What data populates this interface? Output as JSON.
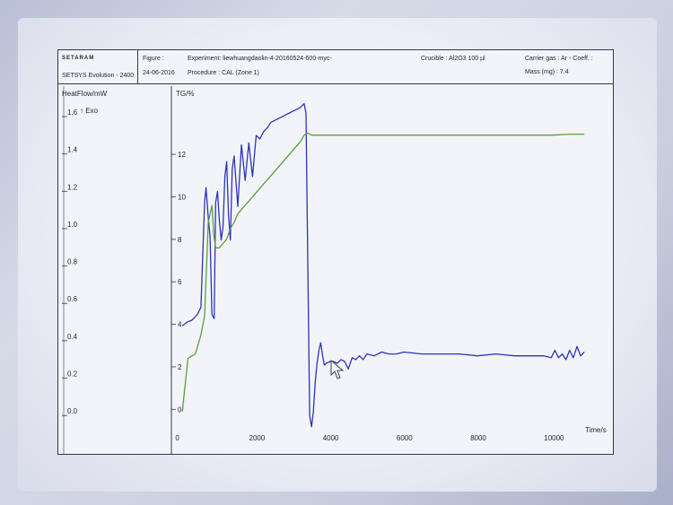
{
  "header": {
    "logo": "SETARAM",
    "app": "SETSYS Evolution - 2400",
    "figure_label": "Figure :",
    "experiment": "Experiment: liewhuangdaolin-4-20160524-600-myc-",
    "date": "24-06-2016",
    "procedure": "Procedure : CAL (Zone 1)",
    "crucible": "Crucible : Al2O3 100 µl",
    "carrier": "Carrier gas : Ar - Coeff. :",
    "mass": "Mass (mg) :  7.4"
  },
  "colors": {
    "heatflow": "#2a35b8",
    "tg": "#5a9e3a",
    "axis": "#33374a"
  },
  "chart_data": {
    "type": "line",
    "title": "",
    "xlabel": "Time/s",
    "xlim": [
      -300,
      11600
    ],
    "x_ticks": [
      "0",
      "2000",
      "4000",
      "6000",
      "8000",
      "10000"
    ],
    "y_left": {
      "label": "HeatFlow/mW",
      "exo_label": "↑ Exo",
      "ylim": [
        -0.1,
        1.72
      ],
      "ticks": [
        "1.6",
        "1.4",
        "1.2",
        "1.0",
        "0.8",
        "0.6",
        "0.4",
        "0.2",
        "0.0"
      ]
    },
    "y_right": {
      "label": "TG/%",
      "ylim": [
        -1,
        15
      ],
      "ticks": [
        "12",
        "10",
        "8",
        "6",
        "4",
        "2",
        "0"
      ]
    },
    "series": [
      {
        "axis": "left",
        "x": [
          0,
          120,
          250,
          300,
          400,
          500,
          600,
          640,
          700,
          750,
          800,
          860,
          900,
          950,
          1000,
          1050,
          1100,
          1150,
          1200,
          1250,
          1300,
          1350,
          1400,
          1500,
          1600,
          1700,
          1800,
          1900,
          2000,
          2100,
          2200,
          2300,
          2400,
          2500,
          2600,
          2700,
          2800,
          2900,
          3000,
          3100,
          3200,
          3300,
          3350,
          3400,
          3450,
          3500,
          3550,
          3600,
          3650,
          3700,
          3750,
          3800,
          3850,
          3900,
          4000,
          4100,
          4200,
          4300,
          4400,
          4500,
          4600,
          4700,
          4800,
          4900,
          5000,
          5200,
          5400,
          5600,
          5800,
          6000,
          6500,
          7000,
          7500,
          8000,
          8500,
          9000,
          9500,
          9800,
          10000,
          10100,
          10200,
          10300,
          10400,
          10500,
          10600,
          10700,
          10800,
          10900
        ],
        "values": [
          0.46,
          0.48,
          0.49,
          0.5,
          0.52,
          0.56,
          1.12,
          1.2,
          1.04,
          0.94,
          0.52,
          0.5,
          1.12,
          1.18,
          1.03,
          0.92,
          0.99,
          1.26,
          1.34,
          1.05,
          0.92,
          1.3,
          1.37,
          1.1,
          1.43,
          1.24,
          1.44,
          1.26,
          1.48,
          1.46,
          1.5,
          1.52,
          1.55,
          1.56,
          1.57,
          1.58,
          1.59,
          1.6,
          1.61,
          1.62,
          1.63,
          1.65,
          1.6,
          0.8,
          -0.02,
          -0.08,
          0.0,
          0.16,
          0.26,
          0.33,
          0.37,
          0.3,
          0.25,
          0.26,
          0.27,
          0.27,
          0.26,
          0.28,
          0.27,
          0.23,
          0.29,
          0.28,
          0.3,
          0.28,
          0.31,
          0.3,
          0.32,
          0.31,
          0.31,
          0.32,
          0.31,
          0.31,
          0.31,
          0.3,
          0.31,
          0.3,
          0.3,
          0.3,
          0.29,
          0.33,
          0.29,
          0.31,
          0.28,
          0.33,
          0.29,
          0.35,
          0.3,
          0.32
        ]
      },
      {
        "axis": "right",
        "x": [
          0,
          50,
          150,
          250,
          350,
          500,
          600,
          700,
          800,
          850,
          900,
          1000,
          1100,
          1200,
          1300,
          1400,
          1500,
          1600,
          1800,
          2000,
          2200,
          2400,
          2600,
          2800,
          3000,
          3200,
          3300,
          3400,
          3500,
          3600,
          3800,
          4000,
          5000,
          6000,
          7000,
          8000,
          9000,
          10000,
          10500,
          10900
        ],
        "values": [
          -0.1,
          0.8,
          2.4,
          2.5,
          2.6,
          3.5,
          4.4,
          8.8,
          9.6,
          8.2,
          7.6,
          7.6,
          7.8,
          8.0,
          8.5,
          8.8,
          9.2,
          9.4,
          9.8,
          10.2,
          10.6,
          11.0,
          11.4,
          11.8,
          12.2,
          12.6,
          12.9,
          13.0,
          12.9,
          12.9,
          12.9,
          12.9,
          12.9,
          12.9,
          12.9,
          12.9,
          12.9,
          12.9,
          12.95,
          12.95
        ]
      }
    ]
  }
}
